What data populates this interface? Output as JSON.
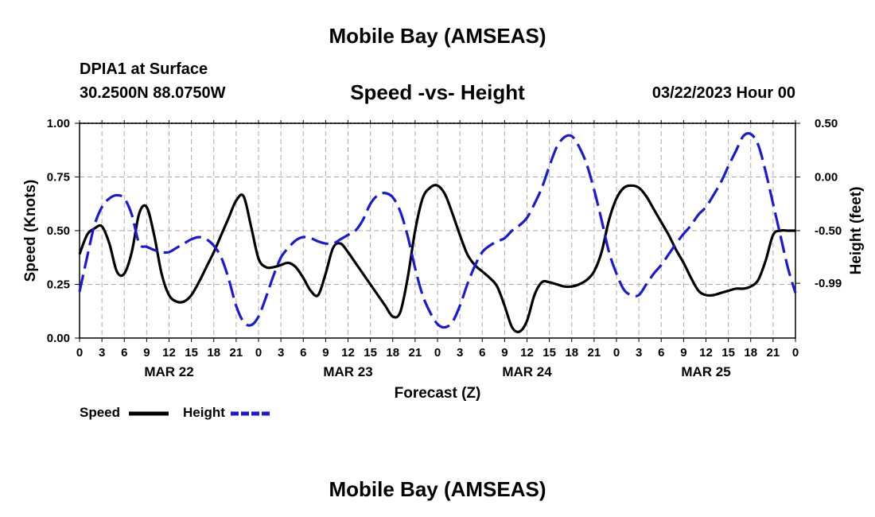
{
  "header": {
    "title": "Mobile Bay (AMSEAS)",
    "station": "DPIA1 at Surface",
    "coordinates": "30.2500N  88.0750W",
    "datetime": "03/22/2023 Hour 00"
  },
  "footer": {
    "title": "Mobile Bay (AMSEAS)"
  },
  "legend": {
    "speed_label": "Speed",
    "height_label": "Height"
  },
  "chart_data": {
    "type": "line",
    "title": "Speed -vs- Height",
    "xlabel": "Forecast (Z)",
    "ylabel": "Speed (Knots)",
    "y2label": "Height (feet)",
    "x_hours_range": [
      0,
      96
    ],
    "x_tick_labels": [
      "0",
      "3",
      "6",
      "9",
      "12",
      "15",
      "18",
      "21",
      "0",
      "3",
      "6",
      "9",
      "12",
      "15",
      "18",
      "21",
      "0",
      "3",
      "6",
      "9",
      "12",
      "15",
      "18",
      "21",
      "0",
      "3",
      "6",
      "9",
      "12",
      "15",
      "18",
      "21",
      "0"
    ],
    "day_labels": [
      "MAR 22",
      "MAR 23",
      "MAR 24",
      "MAR 25"
    ],
    "ylim": [
      0,
      1
    ],
    "y_ticks": [
      "0.00",
      "0.25",
      "0.50",
      "0.75",
      "1.00"
    ],
    "y2lim": [
      -1.5,
      0.5
    ],
    "y2_ticks": [
      "-0.99",
      "-0.50",
      "0.00",
      "0.50"
    ],
    "grid": true,
    "legend_position": "bottom-left",
    "series": [
      {
        "name": "Speed",
        "axis": "left",
        "color": "#000000",
        "style": "solid",
        "x_hours": [
          0,
          1,
          2,
          3,
          4,
          5,
          6,
          7,
          8,
          9,
          10,
          11,
          12,
          13,
          14,
          15,
          16,
          17,
          18,
          19,
          20,
          21,
          22,
          23,
          24,
          25,
          26,
          27,
          28,
          29,
          30,
          31,
          32,
          33,
          34,
          35,
          36,
          37,
          38,
          39,
          40,
          41,
          42,
          43,
          44,
          45,
          46,
          47,
          48,
          49,
          50,
          51,
          52,
          53,
          54,
          55,
          56,
          57,
          58,
          59,
          60,
          61,
          62,
          63,
          64,
          65,
          66,
          67,
          68,
          69,
          70,
          71,
          72,
          73,
          74,
          75,
          76,
          77,
          78,
          79,
          80,
          81,
          82,
          83,
          84,
          85,
          86,
          87,
          88,
          89,
          90,
          91,
          92,
          93,
          94,
          95,
          96
        ],
        "values": [
          0.39,
          0.48,
          0.51,
          0.52,
          0.44,
          0.31,
          0.3,
          0.4,
          0.58,
          0.61,
          0.48,
          0.3,
          0.2,
          0.17,
          0.17,
          0.2,
          0.26,
          0.33,
          0.4,
          0.48,
          0.56,
          0.64,
          0.66,
          0.52,
          0.37,
          0.33,
          0.33,
          0.34,
          0.35,
          0.33,
          0.28,
          0.22,
          0.2,
          0.3,
          0.42,
          0.44,
          0.4,
          0.35,
          0.3,
          0.25,
          0.2,
          0.15,
          0.1,
          0.12,
          0.28,
          0.5,
          0.65,
          0.7,
          0.71,
          0.67,
          0.58,
          0.48,
          0.39,
          0.34,
          0.31,
          0.28,
          0.24,
          0.15,
          0.05,
          0.03,
          0.08,
          0.2,
          0.26,
          0.26,
          0.25,
          0.24,
          0.24,
          0.25,
          0.27,
          0.31,
          0.4,
          0.55,
          0.65,
          0.7,
          0.71,
          0.7,
          0.66,
          0.6,
          0.54,
          0.48,
          0.41,
          0.35,
          0.28,
          0.22,
          0.2,
          0.2,
          0.21,
          0.22,
          0.23,
          0.23,
          0.24,
          0.27,
          0.36,
          0.48,
          0.5,
          0.5,
          0.5
        ]
      },
      {
        "name": "Height",
        "axis": "right",
        "color": "#1a1ad6",
        "style": "dashed",
        "x_hours": [
          0,
          1,
          2,
          3,
          4,
          5,
          6,
          7,
          8,
          9,
          10,
          11,
          12,
          13,
          14,
          15,
          16,
          17,
          18,
          19,
          20,
          21,
          22,
          23,
          24,
          25,
          26,
          27,
          28,
          29,
          30,
          31,
          32,
          33,
          34,
          35,
          36,
          37,
          38,
          39,
          40,
          41,
          42,
          43,
          44,
          45,
          46,
          47,
          48,
          49,
          50,
          51,
          52,
          53,
          54,
          55,
          56,
          57,
          58,
          59,
          60,
          61,
          62,
          63,
          64,
          65,
          66,
          67,
          68,
          69,
          70,
          71,
          72,
          73,
          74,
          75,
          76,
          77,
          78,
          79,
          80,
          81,
          82,
          83,
          84,
          85,
          86,
          87,
          88,
          89,
          90,
          91,
          92,
          93,
          94,
          95,
          96
        ],
        "values": [
          -1.07,
          -0.75,
          -0.45,
          -0.28,
          -0.2,
          -0.17,
          -0.2,
          -0.35,
          -0.62,
          -0.65,
          -0.68,
          -0.7,
          -0.7,
          -0.66,
          -0.62,
          -0.58,
          -0.56,
          -0.58,
          -0.64,
          -0.75,
          -0.95,
          -1.2,
          -1.35,
          -1.38,
          -1.3,
          -1.12,
          -0.92,
          -0.75,
          -0.66,
          -0.59,
          -0.56,
          -0.57,
          -0.6,
          -0.62,
          -0.62,
          -0.58,
          -0.54,
          -0.5,
          -0.4,
          -0.25,
          -0.17,
          -0.15,
          -0.19,
          -0.32,
          -0.55,
          -0.85,
          -1.1,
          -1.26,
          -1.37,
          -1.4,
          -1.35,
          -1.2,
          -1.0,
          -0.83,
          -0.7,
          -0.64,
          -0.6,
          -0.57,
          -0.5,
          -0.45,
          -0.38,
          -0.25,
          -0.1,
          0.1,
          0.28,
          0.37,
          0.38,
          0.28,
          0.12,
          -0.12,
          -0.4,
          -0.7,
          -0.9,
          -1.05,
          -1.1,
          -1.1,
          -1.0,
          -0.9,
          -0.82,
          -0.72,
          -0.62,
          -0.53,
          -0.45,
          -0.35,
          -0.28,
          -0.17,
          -0.05,
          0.1,
          0.24,
          0.38,
          0.4,
          0.3,
          0.05,
          -0.25,
          -0.55,
          -0.85,
          -1.08
        ]
      }
    ]
  }
}
